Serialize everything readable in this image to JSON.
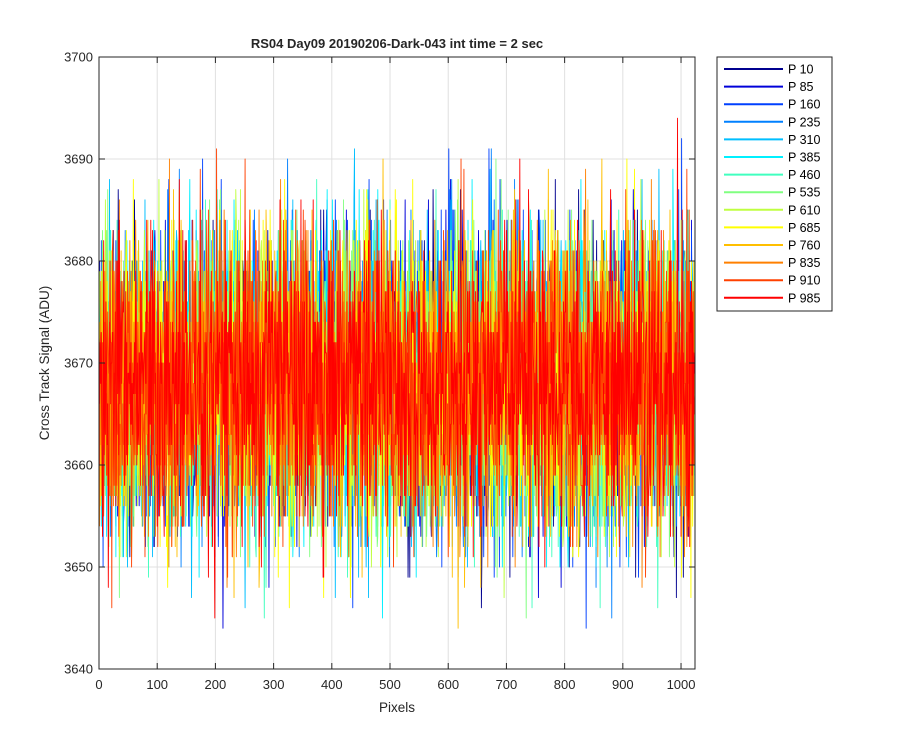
{
  "chart_data": {
    "type": "line",
    "title": "RS04 Day09 20190206-Dark-043 int time = 2 sec",
    "xlabel": "Pixels",
    "ylabel": "Cross Track Signal (ADU)",
    "xlim": [
      0,
      1024
    ],
    "ylim": [
      3640,
      3700
    ],
    "xticks": [
      0,
      100,
      200,
      300,
      400,
      500,
      600,
      700,
      800,
      900,
      1000
    ],
    "yticks": [
      3640,
      3650,
      3660,
      3670,
      3680,
      3690,
      3700
    ],
    "grid": true,
    "legend_position": "outside-top-right",
    "x_range": [
      1,
      1024
    ],
    "noise_model": {
      "mean": 3668,
      "std": 7.5,
      "min": 3642,
      "max": 3699
    },
    "series": [
      {
        "name": "P 10",
        "color": "#00008f"
      },
      {
        "name": "P 85",
        "color": "#0000d9"
      },
      {
        "name": "P 160",
        "color": "#0040ff"
      },
      {
        "name": "P 235",
        "color": "#0080ff"
      },
      {
        "name": "P 310",
        "color": "#00bfff"
      },
      {
        "name": "P 385",
        "color": "#00f0ff"
      },
      {
        "name": "P 460",
        "color": "#40ffbf"
      },
      {
        "name": "P 535",
        "color": "#80ff80"
      },
      {
        "name": "P 610",
        "color": "#bfff40"
      },
      {
        "name": "P 685",
        "color": "#ffff00"
      },
      {
        "name": "P 760",
        "color": "#ffbf00"
      },
      {
        "name": "P 835",
        "color": "#ff8000"
      },
      {
        "name": "P 910",
        "color": "#ff4000"
      },
      {
        "name": "P 985",
        "color": "#ff0000"
      }
    ]
  }
}
